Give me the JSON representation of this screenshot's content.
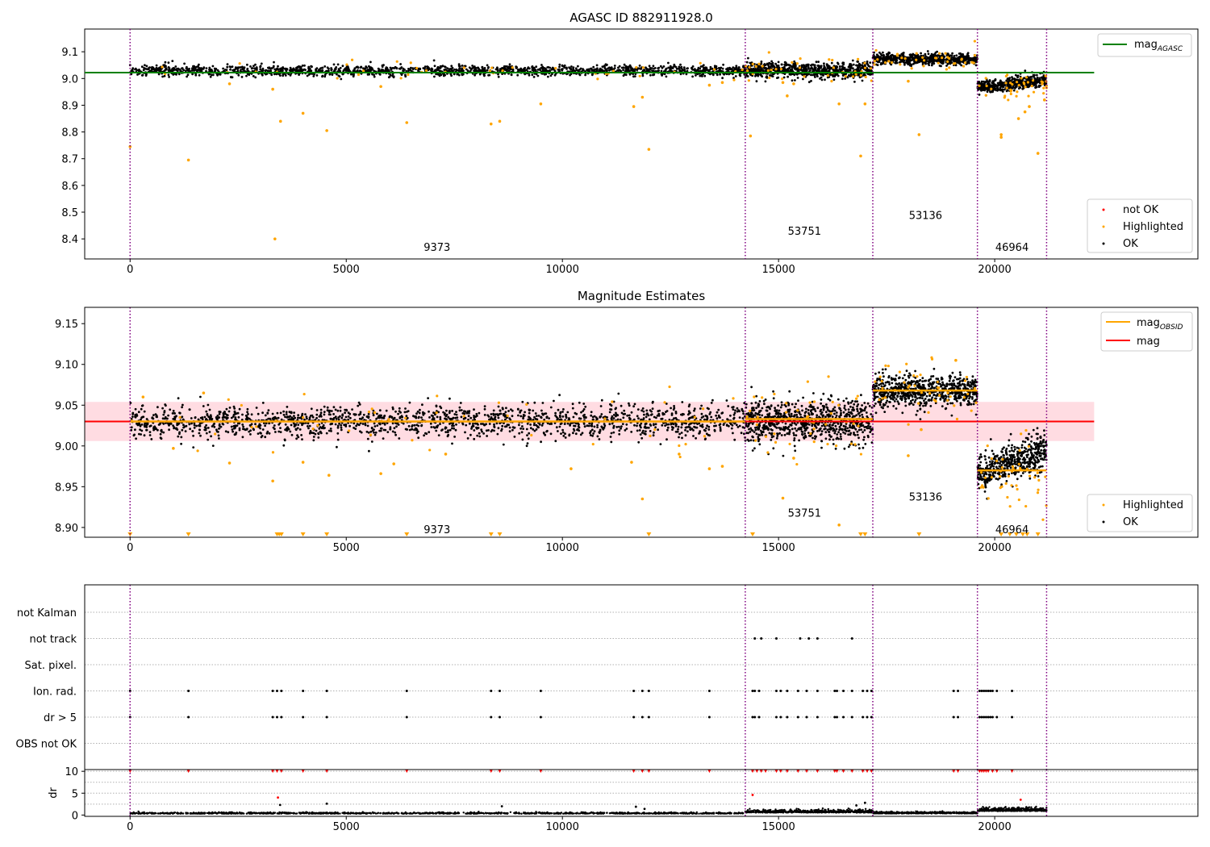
{
  "colors": {
    "ok": "#000000",
    "highlighted": "#ffa500",
    "not_ok": "#ff0000",
    "mag_agasc": "#008000",
    "mag_obsid": "#ffa500",
    "mag": "#ff0000",
    "band": "#ffc0cb",
    "obsid_divider": "#800080",
    "grid": "#b0b0b0"
  },
  "chart_data": [
    {
      "type": "scatter",
      "title": "AGASC ID 882911928.0",
      "xlim": [
        -1050,
        24700
      ],
      "ylim": [
        8.325,
        9.185
      ],
      "xticks": [
        0,
        5000,
        10000,
        15000,
        20000
      ],
      "yticks": [
        8.4,
        8.5,
        8.6,
        8.7,
        8.8,
        8.9,
        9.0,
        9.1
      ],
      "ytick_labels": [
        "8.4",
        "8.5",
        "8.6",
        "8.7",
        "8.8",
        "8.9",
        "9.0",
        "9.1"
      ],
      "obsid_boundaries": [
        0,
        14230,
        17180,
        19600,
        21200
      ],
      "obsid_labels": [
        {
          "text": "9373",
          "x": 7100,
          "y": 8.37
        },
        {
          "text": "53751",
          "x": 15600,
          "y": 8.43
        },
        {
          "text": "53136",
          "x": 18400,
          "y": 8.49
        },
        {
          "text": "46964",
          "x": 20400,
          "y": 8.37
        }
      ],
      "hlines": [
        {
          "name": "mag_AGASC",
          "y": 9.022,
          "x0": -1050,
          "x1": 22300
        }
      ],
      "segments": [
        {
          "x0": 0,
          "x1": 14230,
          "center": 9.03,
          "spread": 0.01,
          "n": 1600
        },
        {
          "x0": 14230,
          "x1": 17180,
          "center": 9.03,
          "spread": 0.014,
          "n": 750
        },
        {
          "x0": 17180,
          "x1": 19600,
          "center": 9.072,
          "spread": 0.01,
          "n": 650
        },
        {
          "x0": 19600,
          "x1": 21200,
          "center": 8.965,
          "spread": 0.012,
          "n": 450
        }
      ],
      "series": [
        {
          "name": "not OK",
          "color": "#ff0000"
        },
        {
          "name": "Highlighted",
          "color": "#ffa500",
          "x": [
            0,
            1350,
            3350,
            3480,
            4000,
            4550,
            6400,
            8350,
            8550,
            9500,
            11650,
            11850,
            12000,
            14350,
            15200,
            15350,
            16400,
            16900,
            17000,
            18000,
            18250,
            20150,
            20150,
            20550,
            20700,
            20800,
            21000,
            2300,
            3300,
            5800,
            13400,
            13700,
            15100,
            21150,
            21180
          ],
          "y": [
            8.745,
            8.695,
            8.4,
            8.84,
            8.87,
            8.805,
            8.835,
            8.83,
            8.84,
            8.905,
            8.895,
            8.93,
            8.735,
            8.785,
            8.935,
            8.98,
            8.905,
            8.71,
            8.905,
            8.99,
            8.79,
            8.78,
            8.79,
            8.85,
            8.875,
            8.895,
            8.72,
            8.98,
            8.96,
            8.97,
            8.975,
            8.985,
            8.985,
            8.92,
            9.01
          ]
        },
        {
          "name": "OK",
          "color": "#000000"
        }
      ],
      "legend_main": [
        "not OK",
        "Highlighted",
        "OK"
      ],
      "legend_main_loc": "lower right",
      "legend_lines": [
        {
          "label": "mag",
          "sub": "AGASC",
          "color": "#008000"
        }
      ],
      "legend_lines_loc": "upper right"
    },
    {
      "type": "scatter",
      "title": "Magnitude Estimates",
      "xlim": [
        -1050,
        24700
      ],
      "ylim": [
        8.888,
        9.17
      ],
      "xticks": [
        0,
        5000,
        10000,
        15000,
        20000
      ],
      "yticks": [
        8.9,
        8.95,
        9.0,
        9.05,
        9.1,
        9.15
      ],
      "ytick_labels": [
        "8.90",
        "8.95",
        "9.00",
        "9.05",
        "9.10",
        "9.15"
      ],
      "obsid_boundaries": [
        0,
        14230,
        17180,
        19600,
        21200
      ],
      "obsid_labels": [
        {
          "text": "9373",
          "x": 7100,
          "y": 8.898
        },
        {
          "text": "53751",
          "x": 15600,
          "y": 8.918
        },
        {
          "text": "53136",
          "x": 18400,
          "y": 8.938
        },
        {
          "text": "46964",
          "x": 20400,
          "y": 8.898
        }
      ],
      "band": {
        "y0": 9.006,
        "y1": 9.054,
        "x0": -1050,
        "x1": 22300
      },
      "hlines": [
        {
          "name": "mag",
          "y": 9.03,
          "x0": -1050,
          "x1": 22300,
          "color": "#ff0000"
        }
      ],
      "obsid_means": [
        {
          "x0": 0,
          "x1": 14230,
          "y": 9.03
        },
        {
          "x0": 14230,
          "x1": 17180,
          "y": 9.033
        },
        {
          "x0": 17180,
          "x1": 19600,
          "y": 9.068
        },
        {
          "x0": 19600,
          "x1": 21200,
          "y": 8.97
        }
      ],
      "segments": [
        {
          "x0": 0,
          "x1": 14230,
          "center": 9.03,
          "spread": 0.01,
          "n": 1700
        },
        {
          "x0": 14230,
          "x1": 17180,
          "center": 9.03,
          "spread": 0.013,
          "n": 800
        },
        {
          "x0": 17180,
          "x1": 19600,
          "center": 9.068,
          "spread": 0.01,
          "n": 700
        },
        {
          "x0": 19600,
          "x1": 21200,
          "center": 8.965,
          "spread": 0.012,
          "n": 500
        }
      ],
      "series": [
        {
          "name": "Highlighted",
          "color": "#ffa500",
          "x": [
            300,
            1000,
            1700,
            2300,
            3300,
            4000,
            4600,
            5800,
            6100,
            7300,
            10200,
            11600,
            11850,
            12700,
            13400,
            13700,
            15100,
            15350,
            16400,
            18000,
            18300,
            19100
          ],
          "y": [
            9.06,
            8.997,
            9.065,
            8.979,
            8.957,
            8.98,
            8.964,
            8.966,
            8.978,
            8.99,
            8.972,
            8.98,
            8.935,
            8.99,
            8.972,
            8.975,
            8.936,
            8.985,
            8.903,
            8.988,
            9.02,
            9.105
          ]
        },
        {
          "name": "OK",
          "color": "#000000"
        }
      ],
      "clipped_markers_x": [
        0,
        1350,
        3400,
        3450,
        3500,
        4000,
        4550,
        6400,
        8350,
        8550,
        12000,
        14400,
        16900,
        17000,
        18250,
        20150,
        20350,
        20500,
        20650,
        20750,
        21000
      ],
      "legend_main": [
        "Highlighted",
        "OK"
      ],
      "legend_main_loc": "lower right",
      "legend_lines": [
        {
          "label": "mag",
          "sub": "OBSID",
          "color": "#ffa500"
        },
        {
          "label": "mag",
          "sub": "",
          "color": "#ff0000"
        }
      ],
      "legend_lines_loc": "upper right"
    },
    {
      "type": "scatter",
      "title": "",
      "xlim": [
        -1050,
        24700
      ],
      "categories": [
        "not Kalman",
        "not track",
        "Sat. pixel.",
        "Ion. rad.",
        "dr > 5",
        "OBS not OK"
      ],
      "obsid_boundaries": [
        0,
        14230,
        17180,
        19600,
        21200
      ],
      "flags": {
        "not Kalman": [],
        "not track": [
          14450,
          14600,
          14950,
          15500,
          15700,
          15900,
          16700
        ],
        "Sat. pixel.": [],
        "Ion. rad.": [
          0,
          1350,
          3300,
          3400,
          3500,
          4000,
          4550,
          6400,
          8350,
          8550,
          9500,
          11650,
          11850,
          12000,
          13400,
          14400,
          14450,
          14550,
          14950,
          15050,
          15200,
          15450,
          15650,
          15900,
          16300,
          16350,
          16500,
          16700,
          16950,
          17050,
          17150,
          19050,
          19150,
          19650,
          19700,
          19750,
          19800,
          19850,
          19900,
          19950,
          20050,
          20400
        ],
        "dr > 5": [
          0,
          1350,
          3300,
          3400,
          3500,
          4000,
          4550,
          6400,
          8350,
          8550,
          9500,
          11650,
          11850,
          12000,
          13400,
          14400,
          14450,
          14550,
          14950,
          15050,
          15200,
          15450,
          15650,
          15900,
          16300,
          16350,
          16500,
          16700,
          16950,
          17050,
          17150,
          19050,
          19150,
          19650,
          19700,
          19750,
          19800,
          19850,
          19900,
          19950,
          20050,
          20400
        ],
        "OBS not OK": []
      }
    },
    {
      "type": "scatter",
      "title": "",
      "xlabel": "",
      "ylabel": "dr",
      "xlim": [
        -1050,
        24700
      ],
      "ylim": [
        -0.3,
        10.4
      ],
      "xticks": [
        0,
        5000,
        10000,
        15000,
        20000
      ],
      "yticks": [
        0,
        5,
        10
      ],
      "ytick_labels": [
        "0",
        "5",
        "10"
      ],
      "obsid_boundaries": [
        0,
        14230,
        17180,
        19600,
        21200
      ],
      "clipped_x": [
        0,
        1350,
        3300,
        3400,
        3500,
        4000,
        4550,
        6400,
        8350,
        8550,
        9500,
        11650,
        11850,
        12000,
        13400,
        14400,
        14500,
        14600,
        14700,
        14950,
        15050,
        15200,
        15450,
        15650,
        15900,
        16300,
        16350,
        16500,
        16700,
        16950,
        17050,
        17150,
        19050,
        19150,
        19650,
        19700,
        19750,
        19800,
        19850,
        19950,
        20050,
        20400
      ],
      "outliers": [
        {
          "x": 3420,
          "y": 4.0,
          "color": "#ff0000"
        },
        {
          "x": 3470,
          "y": 2.3,
          "color": "#000000"
        },
        {
          "x": 4550,
          "y": 2.6,
          "color": "#000000"
        },
        {
          "x": 8600,
          "y": 2.0,
          "color": "#000000"
        },
        {
          "x": 11700,
          "y": 1.9,
          "color": "#000000"
        },
        {
          "x": 11900,
          "y": 1.4,
          "color": "#000000"
        },
        {
          "x": 14400,
          "y": 4.6,
          "color": "#ff0000"
        },
        {
          "x": 16800,
          "y": 2.2,
          "color": "#000000"
        },
        {
          "x": 17000,
          "y": 2.8,
          "color": "#000000"
        },
        {
          "x": 20600,
          "y": 3.5,
          "color": "#ff0000"
        }
      ],
      "segments": [
        {
          "x0": 0,
          "x1": 14230,
          "center": 0.3,
          "spread": 0.15,
          "n": 1200
        },
        {
          "x0": 14230,
          "x1": 17180,
          "center": 0.55,
          "spread": 0.3,
          "n": 600
        },
        {
          "x0": 17180,
          "x1": 19600,
          "center": 0.35,
          "spread": 0.18,
          "n": 450
        },
        {
          "x0": 19600,
          "x1": 21200,
          "center": 0.9,
          "spread": 0.35,
          "n": 400
        }
      ]
    }
  ]
}
